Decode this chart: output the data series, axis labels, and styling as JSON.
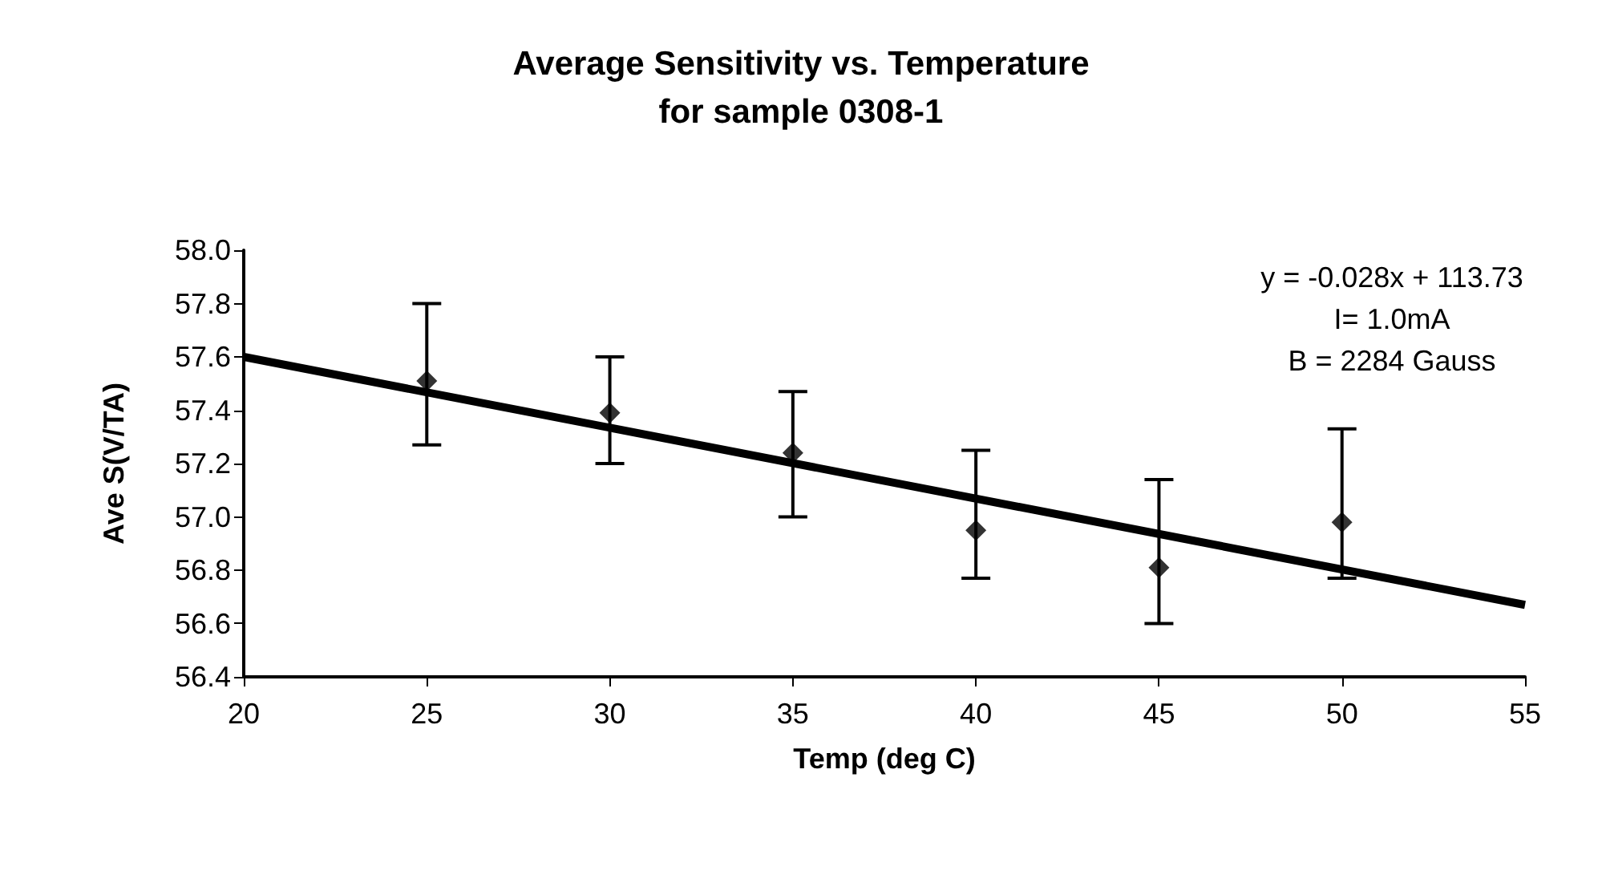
{
  "chart_data": {
    "type": "scatter",
    "title": "Average Sensitivity vs. Temperature\nfor sample 0308-1",
    "xlabel": "Temp (deg C)",
    "ylabel": "Ave S(V/TA)",
    "annotations": [
      "y = -0.028x + 113.73",
      "I= 1.0mA",
      "B = 2284 Gauss"
    ],
    "series": [
      {
        "color": "#000000",
        "marker": "diamond",
        "x": [
          25,
          30,
          35,
          40,
          45,
          50
        ],
        "values": [
          57.51,
          57.39,
          57.24,
          56.95,
          56.81,
          56.98
        ],
        "errors": [
          [
            57.27,
            57.8
          ],
          [
            57.2,
            57.6
          ],
          [
            57.0,
            57.47
          ],
          [
            56.77,
            57.25
          ],
          [
            56.6,
            57.14
          ],
          [
            56.77,
            57.33
          ]
        ]
      },
      {
        "type": "line",
        "color": "#000000",
        "marker": "none",
        "line_style": "solid",
        "x": [
          20,
          55
        ],
        "values": [
          57.6,
          56.67
        ]
      }
    ],
    "xlim": [
      20,
      55
    ],
    "xticks": [
      20,
      25,
      30,
      35,
      40,
      45,
      50,
      55
    ],
    "ylim": [
      56.4,
      58.0
    ],
    "yticks": [
      {
        "value": 56.4,
        "label": "56.4"
      },
      {
        "value": 56.6,
        "label": "56.6"
      },
      {
        "value": 56.8,
        "label": "56.8"
      },
      {
        "value": 57.0,
        "label": "57.0"
      },
      {
        "value": 57.2,
        "label": "57.2"
      },
      {
        "value": 57.4,
        "label": "57.4"
      },
      {
        "value": 57.6,
        "label": "57.6"
      },
      {
        "value": 57.8,
        "label": "57.8"
      },
      {
        "value": 58.0,
        "label": "58.0"
      }
    ],
    "grid": false
  }
}
